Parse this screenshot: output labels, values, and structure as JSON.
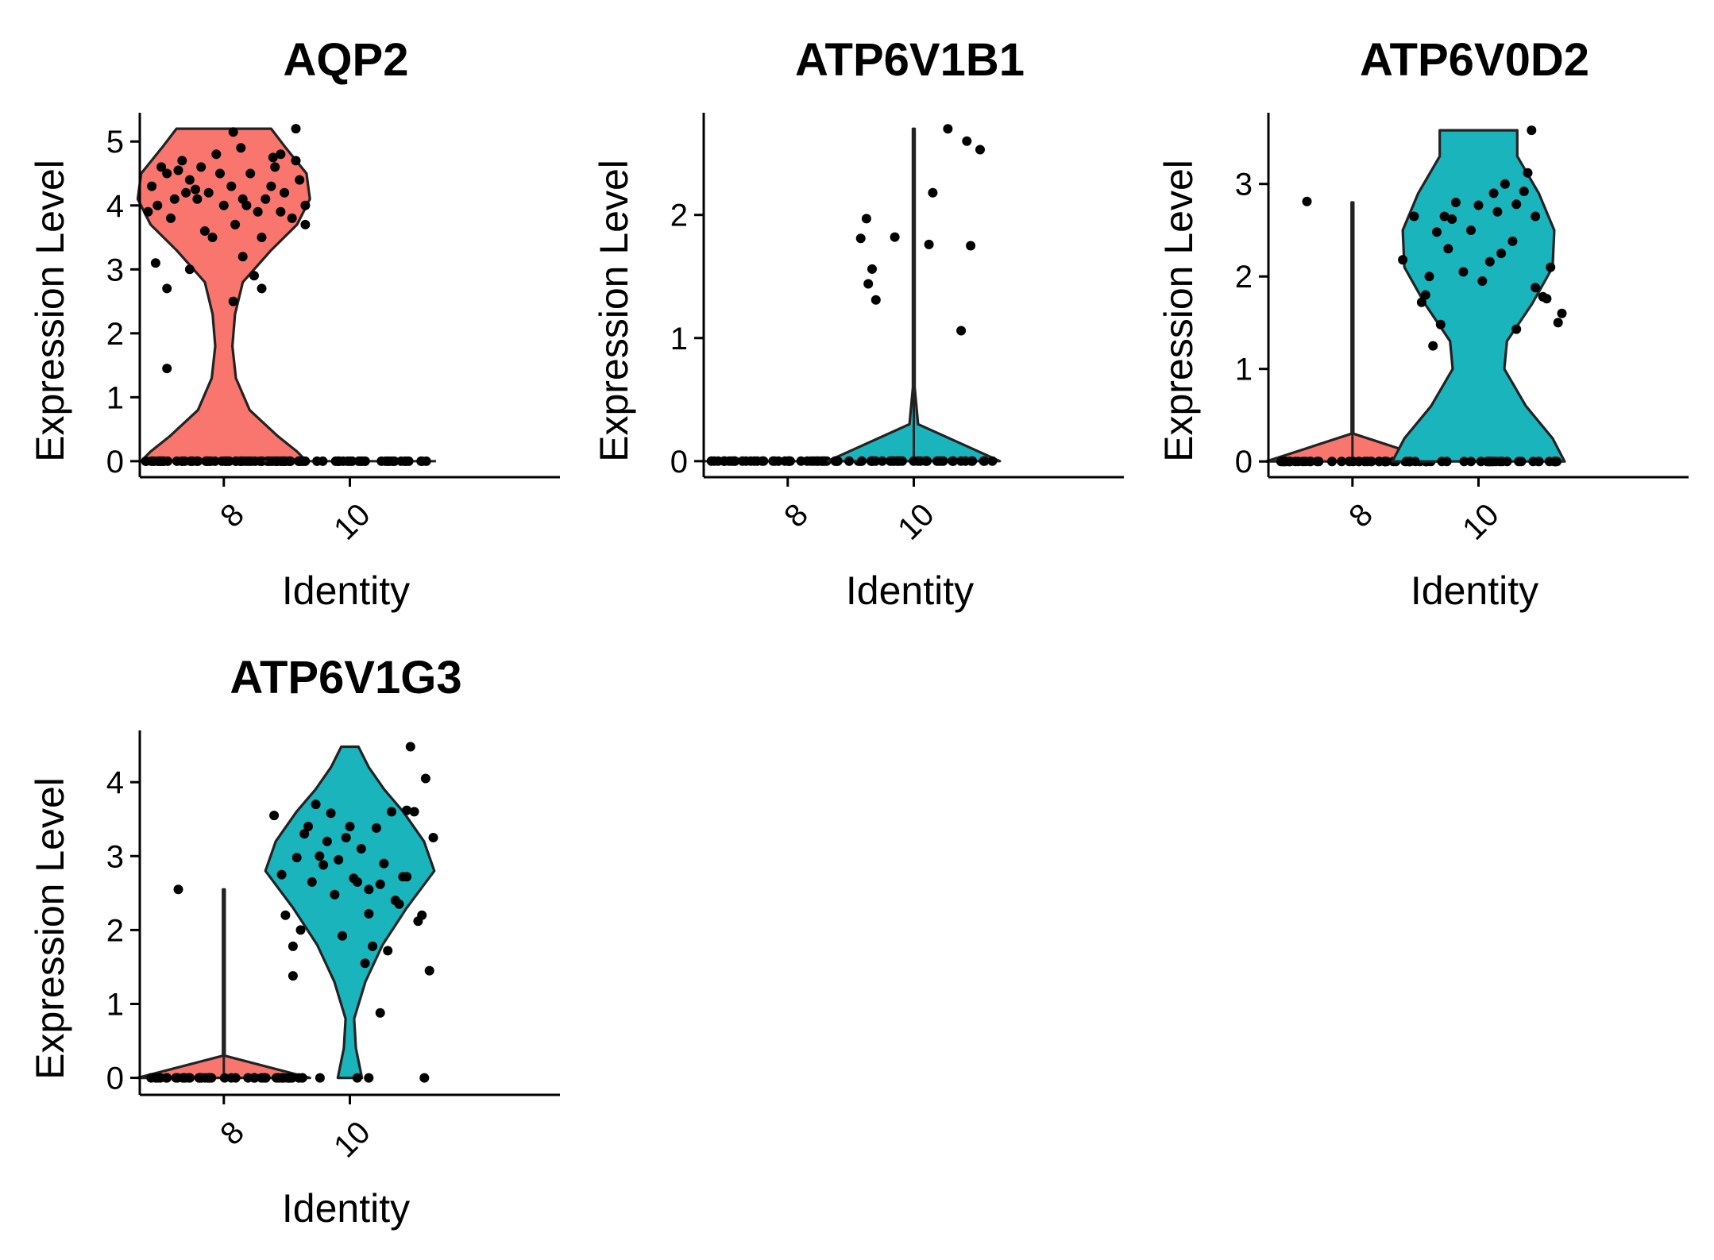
{
  "colors": {
    "group_8": "#F8766D",
    "group_10": "#19B4BC",
    "points": "#000000"
  },
  "chart_data": [
    {
      "type": "violin",
      "title": "AQP2",
      "xlabel": "Identity",
      "ylabel": "Expression Level",
      "categories": [
        "8",
        "10"
      ],
      "ylim": [
        -0.25,
        5.45
      ],
      "yticks": [
        0,
        1,
        2,
        3,
        4,
        5
      ],
      "xtick_labels": [
        "8",
        "10"
      ],
      "ytick_labels": [
        "0",
        "1",
        "2",
        "3",
        "4",
        "5"
      ],
      "series": [
        {
          "category": "8",
          "fill": "#F8766D",
          "density": [
            [
              0,
              0.96
            ],
            [
              0.15,
              0.85
            ],
            [
              0.4,
              0.62
            ],
            [
              0.8,
              0.3
            ],
            [
              1.3,
              0.14
            ],
            [
              1.8,
              0.1
            ],
            [
              2.3,
              0.13
            ],
            [
              2.8,
              0.22
            ],
            [
              3.3,
              0.55
            ],
            [
              3.7,
              0.85
            ],
            [
              4.1,
              1.0
            ],
            [
              4.5,
              0.96
            ],
            [
              4.9,
              0.72
            ],
            [
              5.2,
              0.55
            ]
          ],
          "zero_count": 60,
          "points": [
            [
              -0.38,
              4.3
            ],
            [
              -0.33,
              4.6
            ],
            [
              -0.3,
              4.5
            ],
            [
              -0.26,
              4.1
            ],
            [
              -0.22,
              4.7
            ],
            [
              -0.18,
              4.4
            ],
            [
              -0.12,
              4.6
            ],
            [
              -0.08,
              4.2
            ],
            [
              -0.04,
              4.8
            ],
            [
              0.0,
              4.0
            ],
            [
              0.04,
              4.3
            ],
            [
              0.09,
              4.9
            ],
            [
              0.14,
              4.5
            ],
            [
              0.18,
              3.9
            ],
            [
              0.22,
              4.1
            ],
            [
              0.27,
              4.6
            ],
            [
              0.32,
              4.2
            ],
            [
              0.36,
              3.8
            ],
            [
              0.4,
              4.4
            ],
            [
              0.43,
              4.0
            ],
            [
              -0.4,
              3.9
            ],
            [
              -0.35,
              4.0
            ],
            [
              -0.28,
              3.8
            ],
            [
              -0.2,
              4.2
            ],
            [
              -0.14,
              4.1
            ],
            [
              -0.1,
              3.6
            ],
            [
              -0.02,
              4.5
            ],
            [
              0.06,
              3.7
            ],
            [
              0.12,
              4.0
            ],
            [
              0.2,
              3.5
            ],
            [
              0.25,
              4.3
            ],
            [
              0.3,
              3.9
            ],
            [
              0.38,
              4.7
            ],
            [
              0.43,
              3.7
            ],
            [
              -0.36,
              3.1
            ],
            [
              -0.3,
              2.7
            ],
            [
              -0.18,
              3.0
            ],
            [
              -0.06,
              3.5
            ],
            [
              0.05,
              2.5
            ],
            [
              0.1,
              3.2
            ],
            [
              0.16,
              2.9
            ],
            [
              0.2,
              2.7
            ],
            [
              0.3,
              4.8
            ],
            [
              -0.3,
              1.45
            ],
            [
              0.05,
              5.15
            ],
            [
              0.38,
              5.2
            ],
            [
              -0.24,
              4.55
            ],
            [
              0.26,
              4.75
            ],
            [
              0.1,
              4.1
            ],
            [
              -0.15,
              4.25
            ]
          ]
        },
        {
          "category": "10",
          "fill": "#F8766D",
          "density": [],
          "zero_count": 45,
          "points": []
        }
      ]
    },
    {
      "type": "violin",
      "title": "ATP6V1B1",
      "xlabel": "Identity",
      "ylabel": "Expression Level",
      "categories": [
        "8",
        "10"
      ],
      "ylim": [
        -0.13,
        2.83
      ],
      "yticks": [
        0,
        1,
        2
      ],
      "xtick_labels": [
        "8",
        "10"
      ],
      "ytick_labels": [
        "0",
        "1",
        "2"
      ],
      "series": [
        {
          "category": "8",
          "fill": "#F8766D",
          "density": [],
          "zero_count": 45,
          "points": []
        },
        {
          "category": "10",
          "fill": "#19B4BC",
          "density": [
            [
              0,
              1.0
            ],
            [
              0.3,
              0.05
            ],
            [
              0.6,
              0.01
            ],
            [
              1.0,
              0.01
            ],
            [
              2.7,
              0.01
            ]
          ],
          "zero_count": 40,
          "points": [
            [
              -0.25,
              1.97
            ],
            [
              -0.28,
              1.81
            ],
            [
              -0.22,
              1.56
            ],
            [
              -0.24,
              1.44
            ],
            [
              -0.2,
              1.31
            ],
            [
              -0.1,
              1.82
            ],
            [
              0.08,
              1.76
            ],
            [
              0.1,
              2.18
            ],
            [
              0.18,
              2.7
            ],
            [
              0.28,
              2.6
            ],
            [
              0.35,
              2.53
            ],
            [
              0.3,
              1.75
            ],
            [
              0.25,
              1.06
            ]
          ]
        }
      ]
    },
    {
      "type": "violin",
      "title": "ATP6V0D2",
      "xlabel": "Identity",
      "ylabel": "Expression Level",
      "categories": [
        "8",
        "10"
      ],
      "ylim": [
        -0.17,
        3.77
      ],
      "yticks": [
        0,
        1,
        2,
        3
      ],
      "xtick_labels": [
        "8",
        "10"
      ],
      "ytick_labels": [
        "0",
        "1",
        "2",
        "3"
      ],
      "series": [
        {
          "category": "8",
          "fill": "#F8766D",
          "density": [
            [
              0,
              1.0
            ],
            [
              0.3,
              0.01
            ],
            [
              2.8,
              0.01
            ]
          ],
          "zero_count": 45,
          "points": [
            [
              -0.24,
              2.81
            ]
          ]
        },
        {
          "category": "10",
          "fill": "#19B4BC",
          "density": [
            [
              0,
              1.0
            ],
            [
              0.25,
              0.86
            ],
            [
              0.6,
              0.55
            ],
            [
              1.0,
              0.3
            ],
            [
              1.3,
              0.33
            ],
            [
              1.7,
              0.62
            ],
            [
              2.1,
              0.86
            ],
            [
              2.5,
              0.88
            ],
            [
              2.9,
              0.7
            ],
            [
              3.3,
              0.45
            ],
            [
              3.58,
              0.45
            ]
          ],
          "zero_count": 30,
          "points": [
            [
              -0.4,
              2.18
            ],
            [
              -0.34,
              2.65
            ],
            [
              -0.3,
              1.72
            ],
            [
              -0.26,
              2.0
            ],
            [
              -0.22,
              2.48
            ],
            [
              -0.2,
              1.48
            ],
            [
              -0.16,
              2.3
            ],
            [
              -0.12,
              2.8
            ],
            [
              -0.08,
              2.05
            ],
            [
              -0.04,
              2.5
            ],
            [
              0.0,
              2.77
            ],
            [
              0.06,
              2.16
            ],
            [
              0.12,
              2.25
            ],
            [
              0.18,
              2.38
            ],
            [
              0.2,
              1.43
            ],
            [
              0.24,
              2.92
            ],
            [
              0.28,
              3.58
            ],
            [
              0.3,
              2.65
            ],
            [
              0.34,
              1.78
            ],
            [
              0.38,
              2.1
            ],
            [
              0.42,
              1.5
            ],
            [
              0.44,
              1.6
            ],
            [
              -0.28,
              1.8
            ],
            [
              -0.14,
              2.62
            ],
            [
              0.02,
              1.95
            ],
            [
              0.08,
              2.9
            ],
            [
              0.14,
              3.0
            ],
            [
              0.2,
              2.78
            ],
            [
              0.3,
              1.88
            ],
            [
              -0.24,
              1.25
            ],
            [
              -0.18,
              2.65
            ],
            [
              0.1,
              2.7
            ],
            [
              0.26,
              3.12
            ],
            [
              0.36,
              1.76
            ]
          ]
        }
      ]
    },
    {
      "type": "violin",
      "title": "ATP6V1G3",
      "xlabel": "Identity",
      "ylabel": "Expression Level",
      "categories": [
        "8",
        "10"
      ],
      "ylim": [
        -0.23,
        4.7
      ],
      "yticks": [
        0,
        1,
        2,
        3,
        4
      ],
      "xtick_labels": [
        "8",
        "10"
      ],
      "ytick_labels": [
        "0",
        "1",
        "2",
        "3",
        "4"
      ],
      "series": [
        {
          "category": "8",
          "fill": "#F8766D",
          "density": [
            [
              0,
              1.0
            ],
            [
              0.3,
              0.01
            ],
            [
              2.55,
              0.01
            ]
          ],
          "zero_count": 45,
          "points": [
            [
              -0.24,
              2.55
            ]
          ]
        },
        {
          "category": "10",
          "fill": "#19B4BC",
          "density": [
            [
              0,
              0.14
            ],
            [
              0.4,
              0.07
            ],
            [
              0.8,
              0.05
            ],
            [
              1.3,
              0.18
            ],
            [
              1.8,
              0.38
            ],
            [
              2.3,
              0.66
            ],
            [
              2.8,
              0.98
            ],
            [
              3.2,
              0.86
            ],
            [
              3.6,
              0.62
            ],
            [
              3.9,
              0.4
            ],
            [
              4.2,
              0.22
            ],
            [
              4.48,
              0.1
            ]
          ],
          "zero_count": 6,
          "points": [
            [
              -0.4,
              3.55
            ],
            [
              -0.36,
              2.75
            ],
            [
              -0.34,
              2.2
            ],
            [
              -0.3,
              1.78
            ],
            [
              -0.28,
              2.98
            ],
            [
              -0.24,
              3.3
            ],
            [
              -0.2,
              2.65
            ],
            [
              -0.18,
              3.7
            ],
            [
              -0.14,
              2.88
            ],
            [
              -0.1,
              3.58
            ],
            [
              -0.06,
              2.95
            ],
            [
              -0.02,
              3.25
            ],
            [
              0.02,
              2.7
            ],
            [
              0.06,
              3.1
            ],
            [
              0.1,
              2.55
            ],
            [
              0.14,
              3.38
            ],
            [
              0.18,
              2.9
            ],
            [
              0.22,
              3.6
            ],
            [
              0.26,
              2.35
            ],
            [
              0.3,
              2.72
            ],
            [
              0.34,
              3.6
            ],
            [
              0.38,
              2.2
            ],
            [
              0.4,
              4.05
            ],
            [
              0.42,
              1.45
            ],
            [
              0.44,
              3.25
            ],
            [
              -0.3,
              1.38
            ],
            [
              -0.26,
              2.0
            ],
            [
              -0.16,
              3.0
            ],
            [
              -0.04,
              1.92
            ],
            [
              0.04,
              2.65
            ],
            [
              0.08,
              1.55
            ],
            [
              0.12,
              1.78
            ],
            [
              0.16,
              0.88
            ],
            [
              0.2,
              1.72
            ],
            [
              0.28,
              2.72
            ],
            [
              0.32,
              4.48
            ],
            [
              0.36,
              2.12
            ],
            [
              -0.22,
              3.4
            ],
            [
              0.0,
              3.4
            ],
            [
              0.24,
              2.4
            ],
            [
              -0.12,
              3.2
            ],
            [
              0.16,
              2.62
            ],
            [
              -0.08,
              2.48
            ],
            [
              0.1,
              2.22
            ],
            [
              0.3,
              3.62
            ]
          ]
        }
      ]
    }
  ]
}
